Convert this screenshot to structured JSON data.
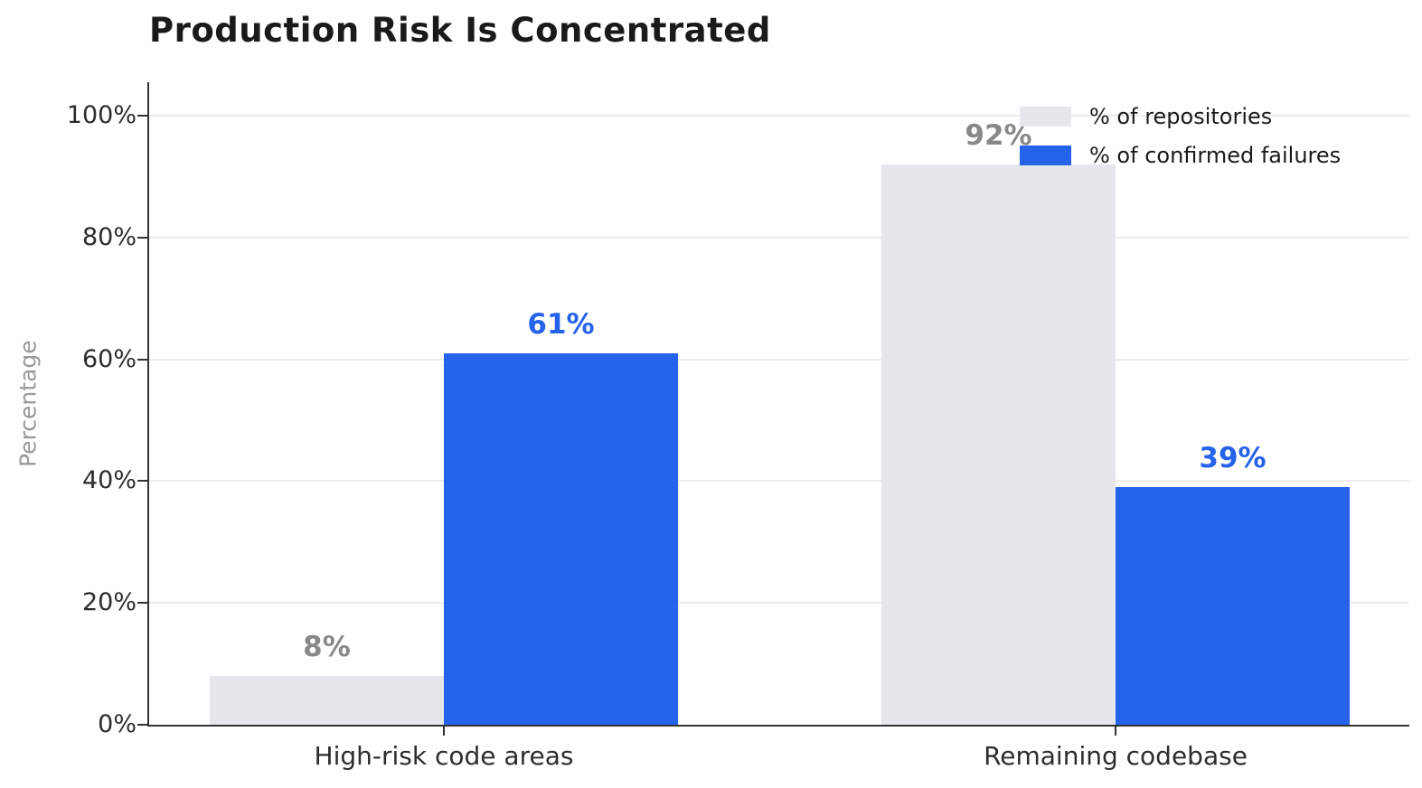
{
  "title": "Production Risk Is Concentrated",
  "chart_data": {
    "type": "bar",
    "title": "Production Risk Is Concentrated",
    "categories": [
      "High-risk code areas",
      "Remaining codebase"
    ],
    "series": [
      {
        "name": "% of repositories",
        "color": "#e5e7eb",
        "label_color": "#888888",
        "values": [
          8,
          92
        ]
      },
      {
        "name": "% of confirmed failures",
        "color": "#2563eb",
        "label_color": "#2563eb",
        "values": [
          61,
          39
        ]
      }
    ],
    "value_labels": [
      [
        "8%",
        "92%"
      ],
      [
        "61%",
        "39%"
      ]
    ],
    "xlabel": "",
    "ylabel": "Percentage",
    "ylim": [
      0,
      105
    ],
    "yticks": [
      0,
      20,
      40,
      60,
      80,
      100
    ],
    "ytick_labels": [
      "0%",
      "20%",
      "40%",
      "60%",
      "80%",
      "100%"
    ],
    "grid": "horizontal-on",
    "legend_position": "top-right",
    "background": "#ffffff"
  }
}
